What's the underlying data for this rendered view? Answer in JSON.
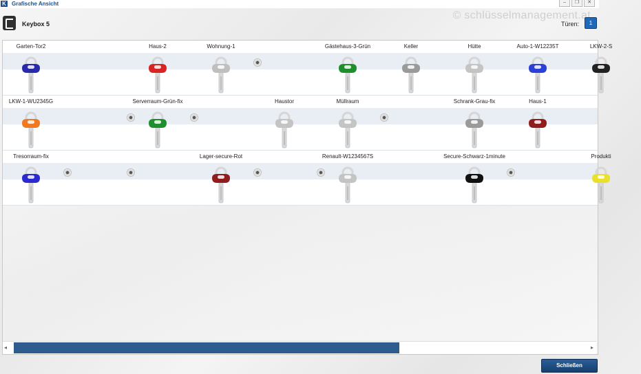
{
  "window": {
    "title": "Grafische Ansicht",
    "app_icon": "K",
    "watermark": "© schlüsselmanagement.at",
    "buttons": {
      "minimize": "–",
      "restore": "❐",
      "close": "✕"
    }
  },
  "header": {
    "keybox_title": "Keybox 5",
    "doors_label": "Türen:",
    "door_value": "1"
  },
  "rows": [
    {
      "slots": [
        {
          "label": "Garten-Tor2",
          "key_color": "#2a2aa8"
        },
        {
          "label": "",
          "key_color": null
        },
        {
          "label": "Haus-2",
          "key_color": "#d92424"
        },
        {
          "label": "Wohnung-1",
          "key_color": "#bfbfbf"
        },
        {
          "label": "",
          "key_color": null
        },
        {
          "label": "Gästehaus-3-Grün",
          "key_color": "#1f8f2e"
        },
        {
          "label": "Keller",
          "key_color": "#9a9a9a"
        },
        {
          "label": "Hütte",
          "key_color": "#c4c4c4"
        },
        {
          "label": "Auto-1-W12235T",
          "key_color": "#2c3fd6"
        },
        {
          "label": "LKW-2-S",
          "key_color": "#222222"
        }
      ]
    },
    {
      "slots": [
        {
          "label": "LKW-1-WU2345G",
          "key_color": "#f07a22"
        },
        {
          "label": "",
          "key_color": null
        },
        {
          "label": "Serverraum-Grün-fix",
          "key_color": "#1f8f2e"
        },
        {
          "label": "",
          "key_color": null
        },
        {
          "label": "Haustor",
          "key_color": "#c4c4c4"
        },
        {
          "label": "Müllraum",
          "key_color": "#c4c4c4"
        },
        {
          "label": "",
          "key_color": null
        },
        {
          "label": "Schrank-Grau-fix",
          "key_color": "#9a9a9a"
        },
        {
          "label": "Haus-1",
          "key_color": "#8f1d1d"
        },
        {
          "label": "",
          "key_color": null
        }
      ]
    },
    {
      "slots": [
        {
          "label": "Tresorraum-fix",
          "key_color": "#2a2ad0"
        },
        {
          "label": "",
          "key_color": null
        },
        {
          "label": "",
          "key_color": null
        },
        {
          "label": "Lager-secure-Rot",
          "key_color": "#8f1d1d"
        },
        {
          "label": "",
          "key_color": null
        },
        {
          "label": "Renault-W1234567S",
          "key_color": "#c4c4c4"
        },
        {
          "label": "",
          "key_color": null
        },
        {
          "label": "Secure-Schwarz-1minute",
          "key_color": "#111111"
        },
        {
          "label": "",
          "key_color": null
        },
        {
          "label": "Produkti",
          "key_color": "#e8e02a"
        }
      ]
    }
  ],
  "scrollbar": {
    "left_arrow": "◂",
    "right_arrow": "▸"
  },
  "footer": {
    "close_label": "Schließen"
  }
}
